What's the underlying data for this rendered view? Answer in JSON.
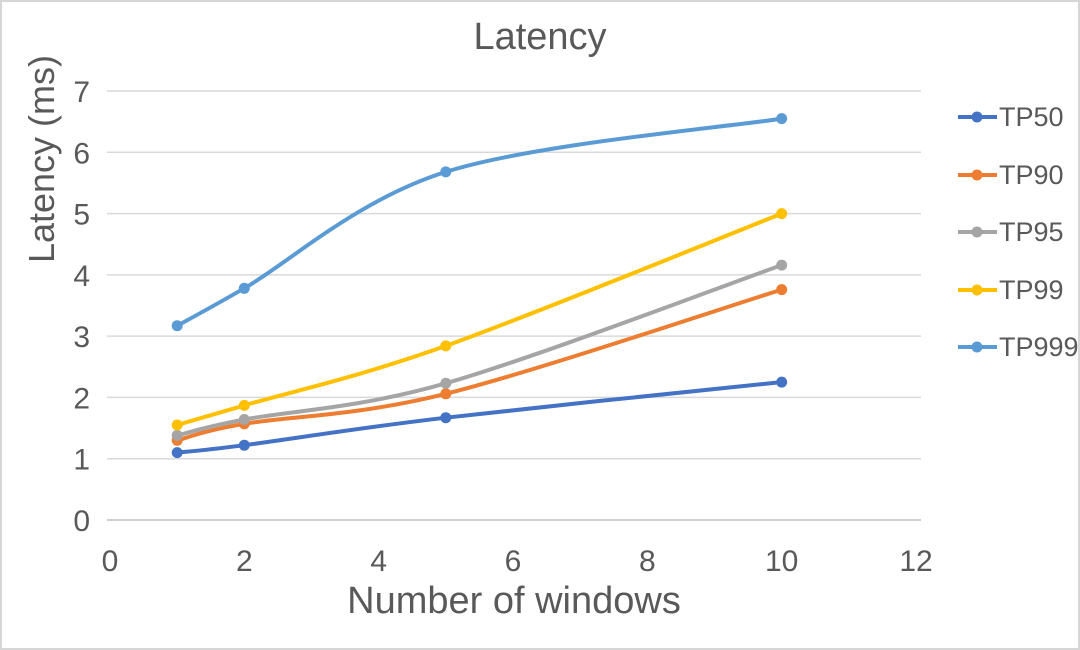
{
  "chart_data": {
    "type": "line",
    "title": "Latency",
    "xlabel": "Number of windows",
    "ylabel": "Latency (ms)",
    "x": [
      1,
      2,
      5,
      10
    ],
    "series": [
      {
        "name": "TP50",
        "color": "#4472C4",
        "values": [
          1.1,
          1.22,
          1.67,
          2.25
        ]
      },
      {
        "name": "TP90",
        "color": "#ED7D31",
        "values": [
          1.3,
          1.57,
          2.06,
          3.76
        ]
      },
      {
        "name": "TP95",
        "color": "#A5A5A5",
        "values": [
          1.38,
          1.64,
          2.23,
          4.16
        ]
      },
      {
        "name": "TP99",
        "color": "#FFC000",
        "values": [
          1.55,
          1.87,
          2.84,
          5.0
        ]
      },
      {
        "name": "TP999",
        "color": "#5B9BD5",
        "values": [
          3.17,
          3.78,
          5.68,
          6.55
        ]
      }
    ],
    "xlim": [
      0,
      12
    ],
    "ylim": [
      0,
      7
    ],
    "xticks": [
      0,
      2,
      4,
      6,
      8,
      10,
      12
    ],
    "yticks": [
      0,
      1,
      2,
      3,
      4,
      5,
      6,
      7
    ],
    "grid": true,
    "smooth_lines": true,
    "legend_position": "right",
    "text_color": "#595959",
    "gridline_color": "#d9d9d9",
    "axisline_color": "#bfbfbf",
    "frame_border_color": "#d6d6d6",
    "background_color": "#ffffff"
  }
}
